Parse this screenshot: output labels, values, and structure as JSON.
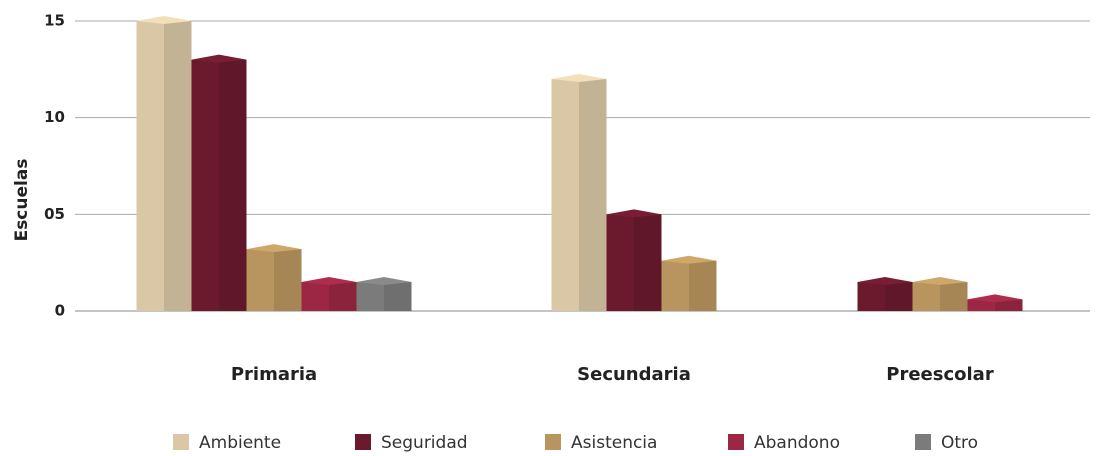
{
  "chart_data": {
    "type": "bar",
    "y_axis_label": "Escuelas",
    "categories": [
      "Primaria",
      "Secundaria",
      "Preescolar"
    ],
    "series": [
      {
        "name": "Ambiente",
        "color": "#d9c7a5",
        "values": [
          15,
          12,
          null
        ]
      },
      {
        "name": "Seguridad",
        "color": "#6b1a2e",
        "values": [
          13,
          5,
          1.5
        ]
      },
      {
        "name": "Asistencia",
        "color": "#b8955e",
        "values": [
          3.2,
          2.6,
          1.5
        ]
      },
      {
        "name": "Abandono",
        "color": "#9c2744",
        "values": [
          1.5,
          null,
          0.6
        ]
      },
      {
        "name": "Otro",
        "color": "#7b7b7b",
        "values": [
          1.5,
          null,
          null
        ]
      }
    ],
    "ylim": [
      0,
      15
    ],
    "yticks": [
      0,
      {
        "value": 5,
        "label": "05"
      },
      10,
      15
    ],
    "grid": true,
    "legend": "bottom"
  }
}
